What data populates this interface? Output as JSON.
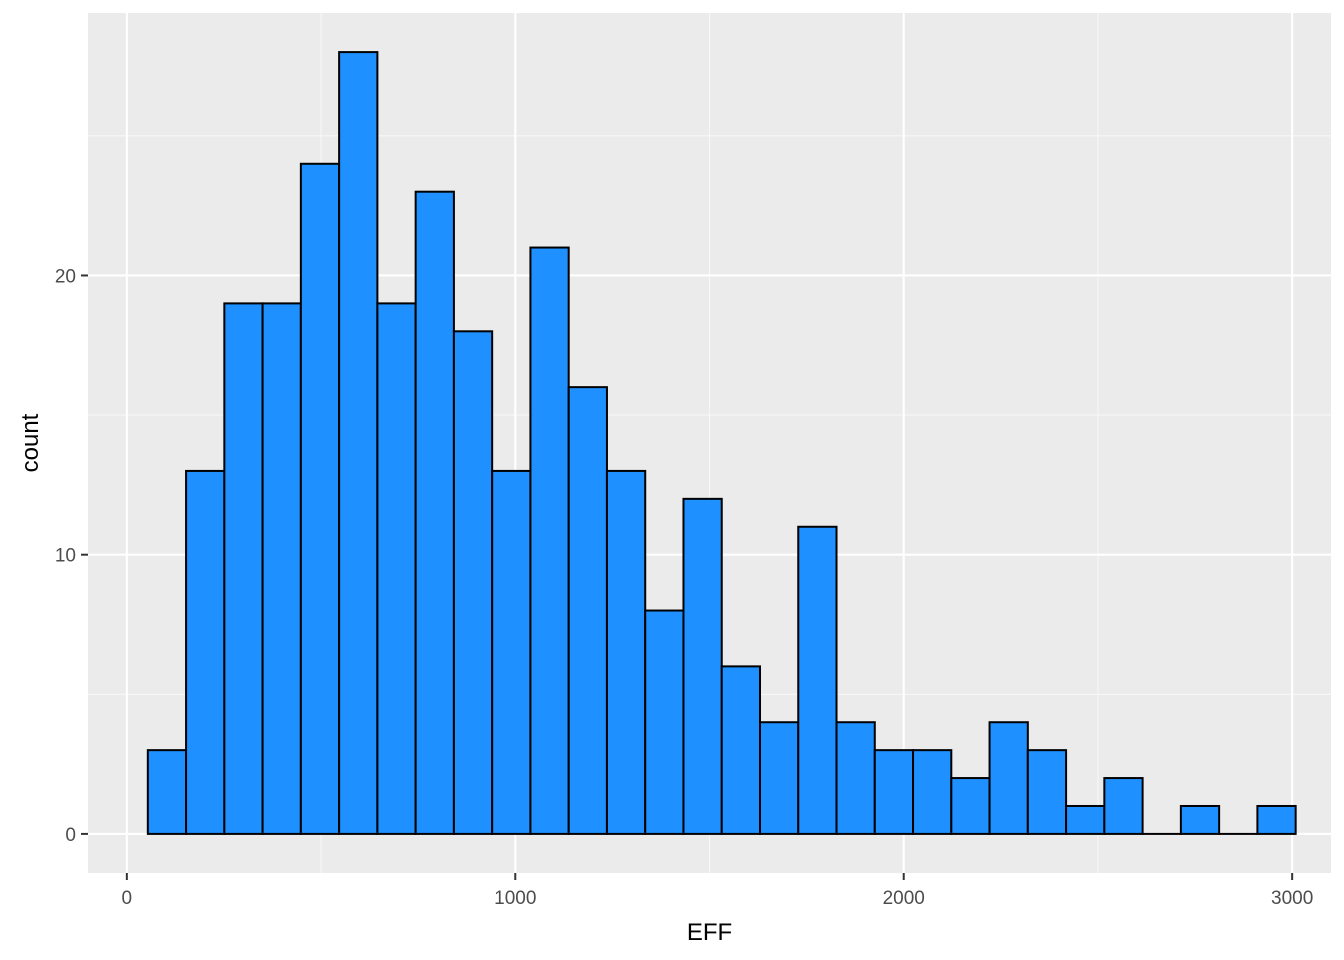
{
  "colors": {
    "panel_background": "#EBEBEB",
    "grid_major": "#FFFFFF",
    "grid_minor": "#F7F7F7",
    "bar_fill": "#1E90FF",
    "bar_outline": "#000000",
    "tick_color": "#333333",
    "tick_label_color": "#4D4D4D"
  },
  "chart_data": {
    "type": "histogram",
    "title": "",
    "xlabel": "EFF",
    "ylabel": "count",
    "xlim": [
      -100,
      3100
    ],
    "ylim": [
      -1.4,
      29.4
    ],
    "x_ticks": [
      0,
      1000,
      2000,
      3000
    ],
    "x_tick_labels": [
      "0",
      "1000",
      "2000",
      "3000"
    ],
    "y_ticks": [
      0,
      10,
      20
    ],
    "y_tick_labels": [
      "0",
      "10",
      "20"
    ],
    "grid": true,
    "legend": "none",
    "bin_width": 98.5,
    "bins": [
      {
        "x_start": 54,
        "x_end": 152.5,
        "count": 3
      },
      {
        "x_start": 152.5,
        "x_end": 251,
        "count": 13
      },
      {
        "x_start": 251,
        "x_end": 349.5,
        "count": 19
      },
      {
        "x_start": 349.5,
        "x_end": 448,
        "count": 19
      },
      {
        "x_start": 448,
        "x_end": 546.5,
        "count": 24
      },
      {
        "x_start": 546.5,
        "x_end": 645,
        "count": 28
      },
      {
        "x_start": 645,
        "x_end": 743.5,
        "count": 19
      },
      {
        "x_start": 743.5,
        "x_end": 842,
        "count": 23
      },
      {
        "x_start": 842,
        "x_end": 940.5,
        "count": 18
      },
      {
        "x_start": 940.5,
        "x_end": 1039,
        "count": 13
      },
      {
        "x_start": 1039,
        "x_end": 1137.5,
        "count": 21
      },
      {
        "x_start": 1137.5,
        "x_end": 1236,
        "count": 16
      },
      {
        "x_start": 1236,
        "x_end": 1334.5,
        "count": 13
      },
      {
        "x_start": 1334.5,
        "x_end": 1433,
        "count": 8
      },
      {
        "x_start": 1433,
        "x_end": 1531.5,
        "count": 12
      },
      {
        "x_start": 1531.5,
        "x_end": 1630,
        "count": 6
      },
      {
        "x_start": 1630,
        "x_end": 1728.5,
        "count": 4
      },
      {
        "x_start": 1728.5,
        "x_end": 1827,
        "count": 11
      },
      {
        "x_start": 1827,
        "x_end": 1925.5,
        "count": 4
      },
      {
        "x_start": 1925.5,
        "x_end": 2024,
        "count": 3
      },
      {
        "x_start": 2024,
        "x_end": 2122.5,
        "count": 3
      },
      {
        "x_start": 2122.5,
        "x_end": 2221,
        "count": 2
      },
      {
        "x_start": 2221,
        "x_end": 2319.5,
        "count": 4
      },
      {
        "x_start": 2319.5,
        "x_end": 2418,
        "count": 3
      },
      {
        "x_start": 2418,
        "x_end": 2516.5,
        "count": 1
      },
      {
        "x_start": 2516.5,
        "x_end": 2615,
        "count": 2
      },
      {
        "x_start": 2615,
        "x_end": 2713.5,
        "count": 0
      },
      {
        "x_start": 2713.5,
        "x_end": 2812,
        "count": 1
      },
      {
        "x_start": 2812,
        "x_end": 2910.5,
        "count": 0
      },
      {
        "x_start": 2910.5,
        "x_end": 3009,
        "count": 1
      }
    ]
  }
}
